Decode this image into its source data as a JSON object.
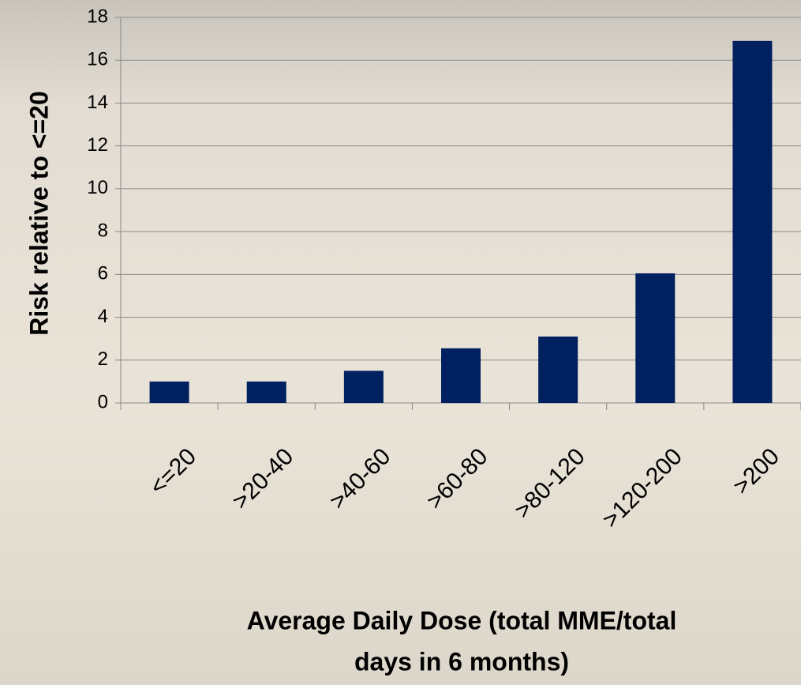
{
  "chart_data": {
    "type": "bar",
    "categories": [
      "<=20",
      ">20-40",
      ">40-60",
      ">60-80",
      ">80-120",
      ">120-200",
      ">200"
    ],
    "values": [
      1,
      1,
      1.5,
      2.55,
      3.1,
      6.05,
      16.9
    ],
    "color": "#002060",
    "ylim": [
      0,
      18
    ],
    "yticks": [
      0,
      2,
      4,
      6,
      8,
      10,
      12,
      14,
      16,
      18
    ],
    "grid": true,
    "y_label": "Risk relative to <=20",
    "x_label": [
      "Average Daily Dose (total MME/total",
      "days in 6 months)"
    ]
  }
}
